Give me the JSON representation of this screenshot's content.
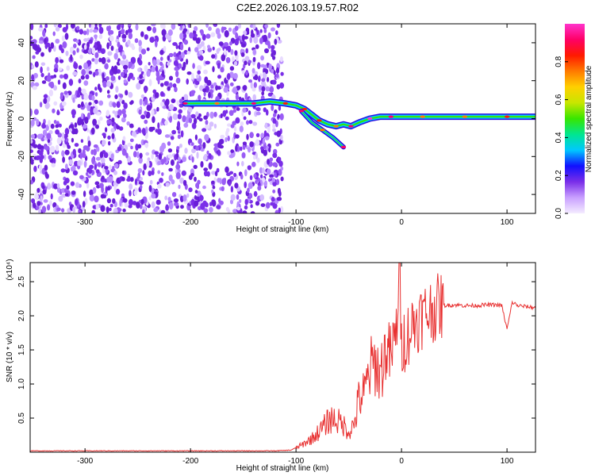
{
  "title": "C2E2.2026.103.19.57.R02",
  "chart_data": [
    {
      "type": "heatmap",
      "xlabel": "Height of straight line (km)",
      "ylabel": "Frequency (Hz)",
      "xlim": [
        -352,
        127
      ],
      "ylim": [
        -50,
        50
      ],
      "xticks": [
        -300,
        -200,
        -100,
        0,
        100
      ],
      "yticks": [
        -40,
        -20,
        0,
        20,
        40
      ],
      "noise_region": {
        "x_range": [
          -352,
          -113
        ],
        "y_range": [
          -50,
          50
        ]
      },
      "main_trace": [
        {
          "x": -205,
          "y": 8
        },
        {
          "x": -190,
          "y": 8
        },
        {
          "x": -175,
          "y": 8
        },
        {
          "x": -160,
          "y": 8
        },
        {
          "x": -140,
          "y": 8
        },
        {
          "x": -125,
          "y": 9
        },
        {
          "x": -110,
          "y": 8
        },
        {
          "x": -100,
          "y": 7
        },
        {
          "x": -92,
          "y": 5
        },
        {
          "x": -85,
          "y": 2
        },
        {
          "x": -78,
          "y": -1
        },
        {
          "x": -70,
          "y": -3
        },
        {
          "x": -62,
          "y": -4
        },
        {
          "x": -55,
          "y": -3
        },
        {
          "x": -48,
          "y": -4
        },
        {
          "x": -40,
          "y": -2
        },
        {
          "x": -30,
          "y": 0
        },
        {
          "x": -20,
          "y": 1
        },
        {
          "x": -10,
          "y": 1
        },
        {
          "x": 0,
          "y": 1
        },
        {
          "x": 20,
          "y": 1
        },
        {
          "x": 40,
          "y": 1
        },
        {
          "x": 60,
          "y": 1
        },
        {
          "x": 80,
          "y": 1
        },
        {
          "x": 100,
          "y": 1
        },
        {
          "x": 127,
          "y": 1
        }
      ],
      "secondary_trace": [
        {
          "x": -95,
          "y": 4
        },
        {
          "x": -85,
          "y": -2
        },
        {
          "x": -75,
          "y": -6
        },
        {
          "x": -65,
          "y": -10
        },
        {
          "x": -55,
          "y": -15
        }
      ],
      "colorbar": {
        "label": "Normalized spectral amplitude",
        "range": [
          0,
          1
        ],
        "ticks": [
          0.0,
          0.2,
          0.4,
          0.6,
          0.8
        ],
        "tick_labels": [
          "0.0",
          "0.2",
          "0.4",
          "0.6",
          "0.8"
        ],
        "colors": [
          "#f4ecff",
          "#c9a0ff",
          "#7a2ee8",
          "#1010ff",
          "#00c8ff",
          "#00e690",
          "#38e600",
          "#c8e600",
          "#ffd000",
          "#ff7a00",
          "#ff1a00",
          "#ff0066",
          "#ff33cc"
        ]
      }
    },
    {
      "type": "line",
      "xlabel": "Height of straight line (km)",
      "ylabel": "SNR (10 * v/v)",
      "y_multiplier_label": "(x10⁴)",
      "xlim": [
        -352,
        127
      ],
      "ylim": [
        0,
        2.78
      ],
      "xticks": [
        -300,
        -200,
        -100,
        0,
        100
      ],
      "yticks": [
        0.5,
        1.0,
        1.5,
        2.0,
        2.5
      ],
      "ytick_labels": [
        "0.5",
        "1.0",
        "1.5",
        "2.0",
        "2.5"
      ],
      "line_color": "#e83030",
      "series": [
        {
          "x": [
            -352,
            -300,
            -250,
            -200,
            -150,
            -120,
            -105,
            -95,
            -85,
            -75,
            -70,
            -65,
            -60,
            -55,
            -50,
            -45,
            -40,
            -35,
            -30,
            -25,
            -20,
            -15,
            -10,
            -5,
            -2,
            0,
            5,
            10,
            15,
            20,
            25,
            30,
            35,
            40,
            50,
            60,
            70,
            80,
            90,
            95,
            100,
            105,
            110,
            115,
            120,
            127
          ],
          "y": [
            0.02,
            0.02,
            0.02,
            0.02,
            0.02,
            0.02,
            0.03,
            0.1,
            0.2,
            0.35,
            0.45,
            0.5,
            0.45,
            0.4,
            0.3,
            0.4,
            0.8,
            0.85,
            1.2,
            1.3,
            1.15,
            1.5,
            1.4,
            1.75,
            2.7,
            1.6,
            1.7,
            1.85,
            1.95,
            2.0,
            2.05,
            2.1,
            2.13,
            2.15,
            2.16,
            2.15,
            2.15,
            2.16,
            2.16,
            2.15,
            1.8,
            2.2,
            2.15,
            2.14,
            2.13,
            2.12
          ]
        }
      ]
    }
  ]
}
